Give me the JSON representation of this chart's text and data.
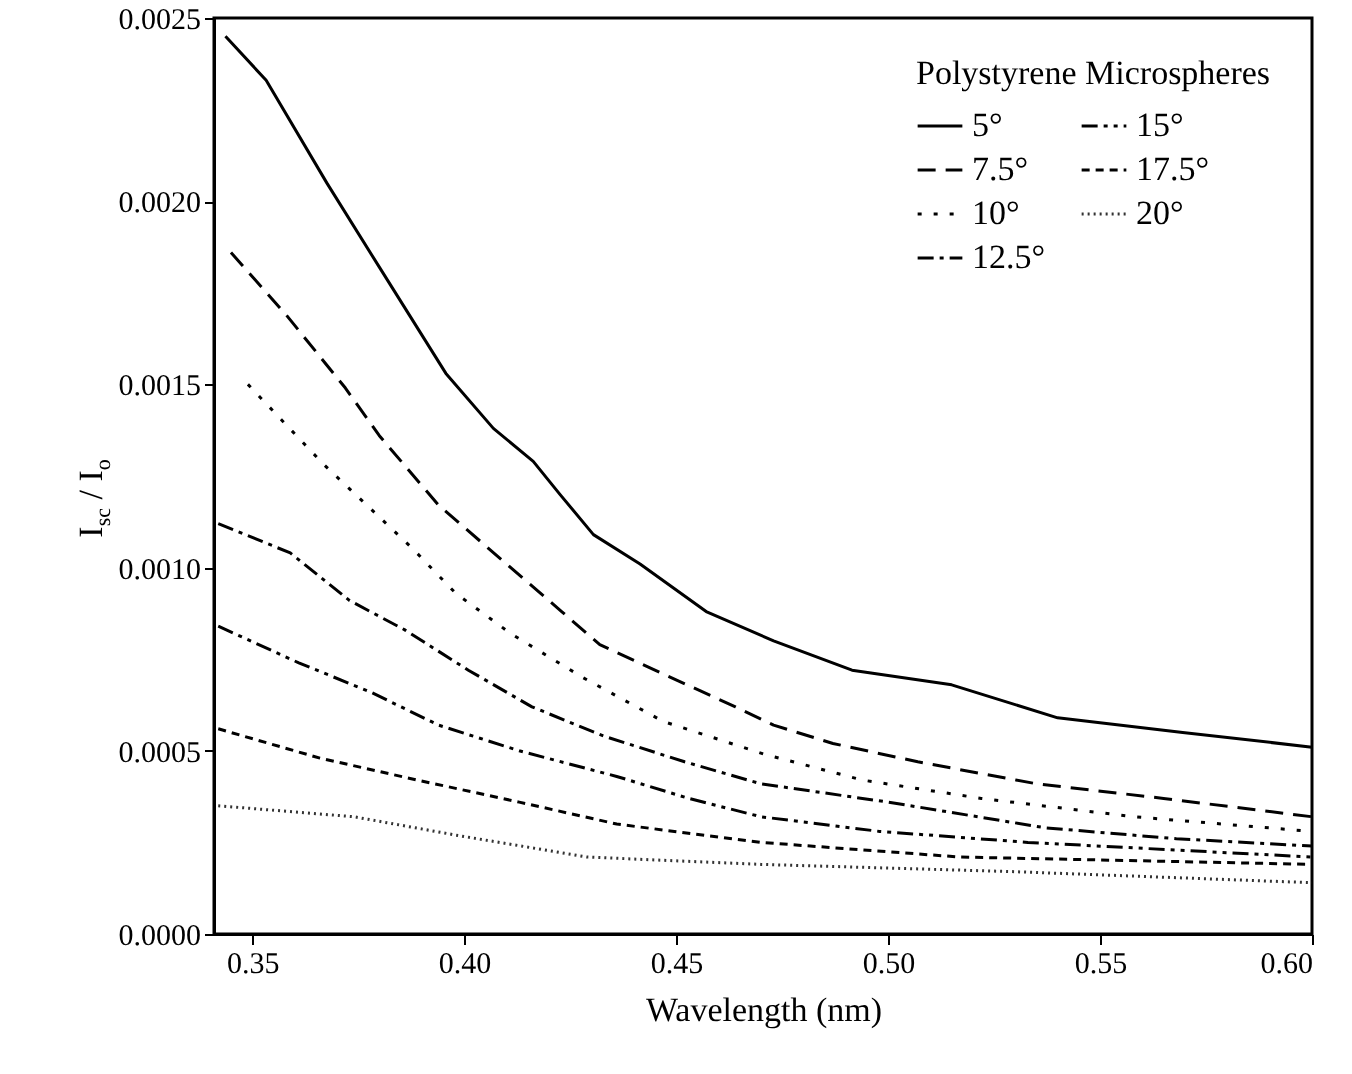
{
  "chart_data": {
    "type": "line",
    "xlabel": "Wavelength (nm)",
    "ylabel": "I$_{sc}$ / I$_{o}$",
    "legend_title": "Polystyrene Microspheres",
    "legend": "top right",
    "grid": false,
    "xlim": [
      0.341,
      0.6
    ],
    "xticks": [
      {
        "value": 0.35,
        "label": "0.35"
      },
      {
        "value": 0.4,
        "label": "0.40"
      },
      {
        "value": 0.45,
        "label": "0.45"
      },
      {
        "value": 0.5,
        "label": "0.50"
      },
      {
        "value": 0.55,
        "label": "0.55"
      },
      {
        "value": 0.6,
        "label": "0.60"
      }
    ],
    "ylim": [
      0,
      0.0025
    ],
    "yticks": [
      {
        "value": 0,
        "label": "0.0000"
      },
      {
        "value": 0.0005,
        "label": "0.0005"
      },
      {
        "value": 0.001,
        "label": "0.0010"
      },
      {
        "value": 0.0015,
        "label": "0.0015"
      },
      {
        "value": 0.002,
        "label": "0.0020"
      },
      {
        "value": 0.0025,
        "label": "0.0025"
      }
    ],
    "series": [
      {
        "name": "5°",
        "color": "#000000",
        "line_style": "solid",
        "x": [
          0.3437,
          0.3533,
          0.3676,
          0.38,
          0.3957,
          0.4069,
          0.4163,
          0.4226,
          0.4305,
          0.4415,
          0.4571,
          0.473,
          0.4915,
          0.515,
          0.54,
          0.5695,
          0.6
        ],
        "values": [
          0.00245,
          0.00233,
          0.00205,
          0.00182,
          0.00153,
          0.00138,
          0.00129,
          0.0012,
          0.00109,
          0.00101,
          0.00088,
          0.0008,
          0.00072,
          0.00068,
          0.00059,
          0.00055,
          0.00051
        ]
      },
      {
        "name": "7.5°",
        "color": "#000000",
        "line_style": "dashed",
        "x": [
          0.345,
          0.358,
          0.372,
          0.38,
          0.394,
          0.404,
          0.423,
          0.432,
          0.445,
          0.464,
          0.473,
          0.487,
          0.507,
          0.535,
          0.565,
          0.6
        ],
        "values": [
          0.00186,
          0.00169,
          0.00149,
          0.00136,
          0.00117,
          0.00107,
          0.00088,
          0.00079,
          0.00072,
          0.00062,
          0.00057,
          0.00052,
          0.00047,
          0.00041,
          0.00037,
          0.00032
        ]
      },
      {
        "name": "10°",
        "color": "#000000",
        "line_style": "dotted",
        "x": [
          0.349,
          0.358,
          0.367,
          0.378,
          0.388,
          0.398,
          0.411,
          0.428,
          0.447,
          0.471,
          0.494,
          0.522,
          0.558,
          0.6
        ],
        "values": [
          0.0015,
          0.00139,
          0.00128,
          0.00116,
          0.00105,
          0.00093,
          0.00082,
          0.0007,
          0.00058,
          0.00049,
          0.00042,
          0.00037,
          0.00032,
          0.00028
        ]
      },
      {
        "name": "12.5°",
        "color": "#000000",
        "line_style": "dashdot",
        "x": [
          0.342,
          0.359,
          0.373,
          0.386,
          0.401,
          0.416,
          0.433,
          0.452,
          0.47,
          0.5,
          0.537,
          0.568,
          0.6
        ],
        "values": [
          0.00112,
          0.00104,
          0.00091,
          0.00083,
          0.00072,
          0.00062,
          0.00054,
          0.00047,
          0.00041,
          0.00036,
          0.00029,
          0.00026,
          0.00024
        ]
      },
      {
        "name": "15°",
        "color": "#000000",
        "line_style": "dashdotdot",
        "x": [
          0.342,
          0.361,
          0.378,
          0.394,
          0.413,
          0.436,
          0.453,
          0.47,
          0.498,
          0.533,
          0.6
        ],
        "values": [
          0.00084,
          0.00074,
          0.00066,
          0.00057,
          0.0005,
          0.00043,
          0.00037,
          0.00032,
          0.00028,
          0.00025,
          0.00021
        ]
      },
      {
        "name": "17.5°",
        "color": "#000000",
        "line_style": "shortdash",
        "x": [
          0.342,
          0.366,
          0.389,
          0.413,
          0.436,
          0.47,
          0.517,
          0.6
        ],
        "values": [
          0.00056,
          0.00048,
          0.00042,
          0.00036,
          0.0003,
          0.00025,
          0.00021,
          0.00019
        ]
      },
      {
        "name": "20°",
        "color": "#333333",
        "line_style": "finedot",
        "x": [
          0.342,
          0.374,
          0.398,
          0.429,
          0.47,
          0.53,
          0.6
        ],
        "values": [
          0.00035,
          0.00032,
          0.00027,
          0.00021,
          0.00019,
          0.00017,
          0.00014
        ]
      }
    ]
  }
}
